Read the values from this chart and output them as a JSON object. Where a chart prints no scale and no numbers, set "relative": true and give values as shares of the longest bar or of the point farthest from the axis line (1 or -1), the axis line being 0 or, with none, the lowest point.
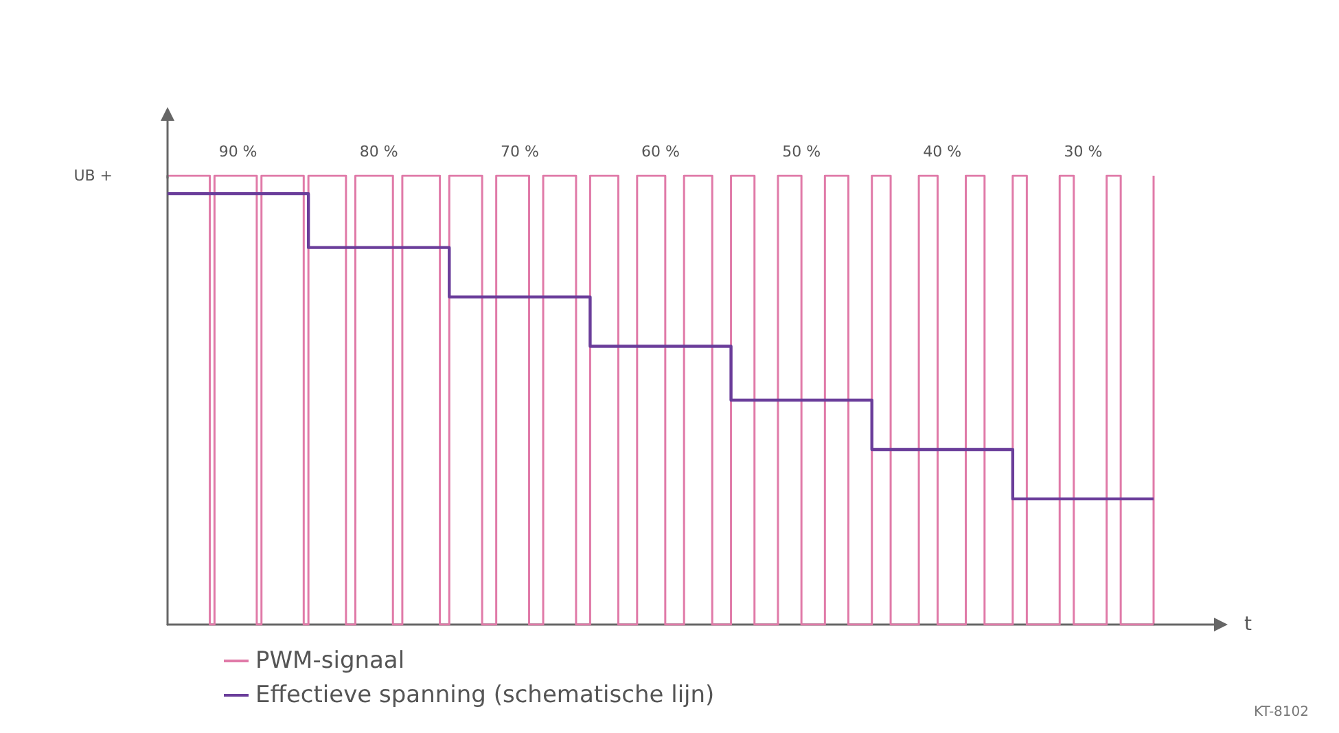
{
  "chart_data": {
    "type": "step",
    "relative": true,
    "xlabel": "t",
    "ylabel": "UB +",
    "grid": false,
    "legend": "bottom left",
    "annotations": [
      "KT-8102"
    ],
    "categories": [
      null,
      null,
      null,
      null,
      null,
      null,
      null,
      null,
      null,
      null,
      null,
      null,
      null,
      null,
      null,
      "90 %",
      null,
      null,
      null,
      null,
      null,
      null,
      null,
      null,
      null,
      null,
      null,
      null,
      null,
      null,
      null,
      null,
      null,
      null,
      null,
      null,
      null,
      null,
      null,
      null,
      null,
      null,
      null,
      null,
      null,
      "80 %",
      null,
      null,
      null,
      null,
      null,
      null,
      null,
      null,
      null,
      null,
      null,
      null,
      null,
      null,
      null,
      null,
      null,
      null,
      null,
      null,
      null,
      null,
      null,
      null,
      null,
      null,
      null,
      null,
      null,
      "70 %",
      null,
      null,
      null,
      null,
      null,
      null,
      null,
      null,
      null,
      null,
      null,
      null,
      null,
      null,
      null,
      null,
      null,
      null,
      null,
      null,
      null,
      null,
      null,
      null,
      null,
      null,
      null,
      null,
      null,
      "60 %",
      null,
      null,
      null,
      null,
      null,
      null,
      null,
      null,
      null,
      null,
      null,
      null,
      null,
      null,
      null,
      null,
      null,
      null,
      null,
      null,
      null,
      null,
      null,
      null,
      null,
      null,
      null,
      null,
      null,
      "50 %",
      null,
      null,
      null,
      null,
      null,
      null,
      null,
      null,
      null,
      null,
      null,
      null,
      null,
      null,
      null,
      null,
      null,
      null,
      null,
      null,
      null,
      null,
      null,
      null,
      null,
      null,
      null,
      null,
      null,
      "40 %",
      null,
      null,
      null,
      null,
      null,
      null,
      null,
      null,
      null,
      null,
      null,
      null,
      null,
      null,
      null,
      null,
      null,
      null,
      null,
      null,
      null,
      null,
      null,
      null,
      null,
      null,
      null,
      null,
      null,
      "30 %",
      null,
      null,
      null,
      null,
      null,
      null,
      null,
      null,
      null,
      null,
      null,
      null,
      null,
      null,
      null
    ],
    "series": [
      {
        "name": "PWM-signaal",
        "color": "#e07aa8",
        "values": [
          1,
          1,
          1,
          1,
          1,
          1,
          1,
          1,
          1,
          0,
          1,
          1,
          1,
          1,
          1,
          1,
          1,
          1,
          1,
          0,
          1,
          1,
          1,
          1,
          1,
          1,
          1,
          1,
          1,
          0,
          1,
          1,
          1,
          1,
          1,
          1,
          1,
          1,
          0,
          0,
          1,
          1,
          1,
          1,
          1,
          1,
          1,
          1,
          0,
          0,
          1,
          1,
          1,
          1,
          1,
          1,
          1,
          1,
          0,
          0,
          1,
          1,
          1,
          1,
          1,
          1,
          1,
          0,
          0,
          0,
          1,
          1,
          1,
          1,
          1,
          1,
          1,
          0,
          0,
          0,
          1,
          1,
          1,
          1,
          1,
          1,
          1,
          0,
          0,
          0,
          1,
          1,
          1,
          1,
          1,
          1,
          0,
          0,
          0,
          0,
          1,
          1,
          1,
          1,
          1,
          1,
          0,
          0,
          0,
          0,
          1,
          1,
          1,
          1,
          1,
          1,
          0,
          0,
          0,
          0,
          1,
          1,
          1,
          1,
          1,
          0,
          0,
          0,
          0,
          0,
          1,
          1,
          1,
          1,
          1,
          0,
          0,
          0,
          0,
          0,
          1,
          1,
          1,
          1,
          1,
          0,
          0,
          0,
          0,
          0,
          1,
          1,
          1,
          1,
          0,
          0,
          0,
          0,
          0,
          0,
          1,
          1,
          1,
          1,
          0,
          0,
          0,
          0,
          0,
          0,
          1,
          1,
          1,
          1,
          0,
          0,
          0,
          0,
          0,
          0,
          1,
          1,
          1,
          0,
          0,
          0,
          0,
          0,
          0,
          0,
          1,
          1,
          1,
          0,
          0,
          0,
          0,
          0,
          0,
          0,
          1,
          1,
          1,
          0,
          0,
          0,
          0,
          0,
          0,
          0,
          1
        ]
      },
      {
        "name": "Effectieve spanning (schematische lijn)",
        "color": "#6a3d9a",
        "values": [
          0.96,
          0.96,
          0.96,
          0.96,
          0.96,
          0.96,
          0.96,
          0.96,
          0.96,
          0.96,
          0.96,
          0.96,
          0.96,
          0.96,
          0.96,
          0.96,
          0.96,
          0.96,
          0.96,
          0.96,
          0.96,
          0.96,
          0.96,
          0.96,
          0.96,
          0.96,
          0.96,
          0.96,
          0.96,
          0.96,
          0.84,
          0.84,
          0.84,
          0.84,
          0.84,
          0.84,
          0.84,
          0.84,
          0.84,
          0.84,
          0.84,
          0.84,
          0.84,
          0.84,
          0.84,
          0.84,
          0.84,
          0.84,
          0.84,
          0.84,
          0.84,
          0.84,
          0.84,
          0.84,
          0.84,
          0.84,
          0.84,
          0.84,
          0.84,
          0.84,
          0.73,
          0.73,
          0.73,
          0.73,
          0.73,
          0.73,
          0.73,
          0.73,
          0.73,
          0.73,
          0.73,
          0.73,
          0.73,
          0.73,
          0.73,
          0.73,
          0.73,
          0.73,
          0.73,
          0.73,
          0.73,
          0.73,
          0.73,
          0.73,
          0.73,
          0.73,
          0.73,
          0.73,
          0.73,
          0.73,
          0.62,
          0.62,
          0.62,
          0.62,
          0.62,
          0.62,
          0.62,
          0.62,
          0.62,
          0.62,
          0.62,
          0.62,
          0.62,
          0.62,
          0.62,
          0.62,
          0.62,
          0.62,
          0.62,
          0.62,
          0.62,
          0.62,
          0.62,
          0.62,
          0.62,
          0.62,
          0.62,
          0.62,
          0.62,
          0.62,
          0.5,
          0.5,
          0.5,
          0.5,
          0.5,
          0.5,
          0.5,
          0.5,
          0.5,
          0.5,
          0.5,
          0.5,
          0.5,
          0.5,
          0.5,
          0.5,
          0.5,
          0.5,
          0.5,
          0.5,
          0.5,
          0.5,
          0.5,
          0.5,
          0.5,
          0.5,
          0.5,
          0.5,
          0.5,
          0.5,
          0.39,
          0.39,
          0.39,
          0.39,
          0.39,
          0.39,
          0.39,
          0.39,
          0.39,
          0.39,
          0.39,
          0.39,
          0.39,
          0.39,
          0.39,
          0.39,
          0.39,
          0.39,
          0.39,
          0.39,
          0.39,
          0.39,
          0.39,
          0.39,
          0.39,
          0.39,
          0.39,
          0.39,
          0.39,
          0.39,
          0.28,
          0.28,
          0.28,
          0.28,
          0.28,
          0.28,
          0.28,
          0.28,
          0.28,
          0.28,
          0.28,
          0.28,
          0.28,
          0.28,
          0.28,
          0.28,
          0.28,
          0.28,
          0.28,
          0.28,
          0.28,
          0.28,
          0.28,
          0.28,
          0.28,
          0.28,
          0.28,
          0.28,
          0.28,
          0.28,
          0.28
        ]
      }
    ]
  }
}
